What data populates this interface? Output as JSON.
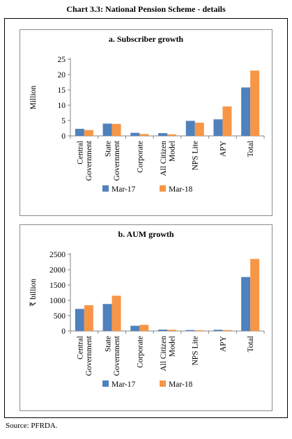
{
  "header": {
    "title": "Chart 3.3: National Pension Scheme - details"
  },
  "footer": {
    "source": "Source: PFRDA."
  },
  "colors": {
    "mar17": "#4F81BD",
    "mar18": "#F79646",
    "axis": "#868686"
  },
  "chart_data": [
    {
      "type": "bar",
      "title": "a. Subscriber growth",
      "ylabel": "Million",
      "xlabel": "",
      "ylim": [
        0,
        25
      ],
      "yticks": [
        0,
        5,
        10,
        15,
        20,
        25
      ],
      "grid": false,
      "legend": "bottom",
      "categories": [
        "Central Government",
        "State Government",
        "Corporate",
        "All Citizen Model",
        "NPS Lite",
        "APY",
        "Total"
      ],
      "category_lines": [
        [
          "Central",
          "Government"
        ],
        [
          "State",
          "Government"
        ],
        [
          "Corporate"
        ],
        [
          "All Citizen",
          "Model"
        ],
        [
          "NPS Lite"
        ],
        [
          "APY"
        ],
        [
          "Total"
        ]
      ],
      "series": [
        {
          "name": "Mar-17",
          "values": [
            2.3,
            4.0,
            1.0,
            0.9,
            4.9,
            5.4,
            15.8
          ]
        },
        {
          "name": "Mar-18",
          "values": [
            1.9,
            3.9,
            0.6,
            0.5,
            4.3,
            9.6,
            21.3
          ]
        }
      ]
    },
    {
      "type": "bar",
      "title": "b. AUM growth",
      "ylabel": "₹ billion",
      "xlabel": "",
      "ylim": [
        0,
        2500
      ],
      "yticks": [
        0,
        500,
        1000,
        1500,
        2000,
        2500
      ],
      "grid": false,
      "legend": "bottom",
      "categories": [
        "Central Government",
        "State Government",
        "Corporate",
        "All Citizen Model",
        "NPS Lite",
        "APY",
        "Total"
      ],
      "category_lines": [
        [
          "Central",
          "Government"
        ],
        [
          "State",
          "Government"
        ],
        [
          "Corporate"
        ],
        [
          "All Citizen",
          "Model"
        ],
        [
          "NPS Lite"
        ],
        [
          "APY"
        ],
        [
          "Total"
        ]
      ],
      "series": [
        {
          "name": "Mar-17",
          "values": [
            720,
            880,
            170,
            45,
            30,
            40,
            1760
          ]
        },
        {
          "name": "Mar-18",
          "values": [
            840,
            1150,
            200,
            40,
            25,
            30,
            2350
          ]
        }
      ]
    }
  ]
}
